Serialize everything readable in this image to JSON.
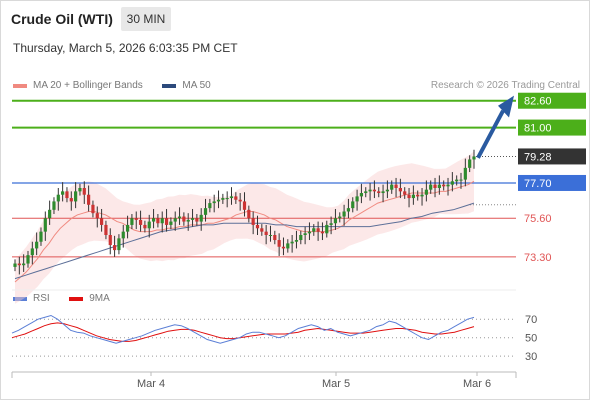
{
  "header": {
    "title": "Crude Oil (WTI)",
    "timeframe": "30 MIN",
    "datetime": "Thursday, March 5, 2026 6:03:35 PM CET",
    "copyright": "Research © 2026 Trading Central"
  },
  "legend": [
    {
      "label": "MA 20 + Bollinger Bands",
      "color": "#f08a80"
    },
    {
      "label": "MA 50",
      "color": "#2c4a7c"
    }
  ],
  "rsi_legend": [
    {
      "label": "RSI",
      "color": "#5b7fd6"
    },
    {
      "label": "9MA",
      "color": "#e01010"
    }
  ],
  "colors": {
    "resistance": "#4caf1a",
    "support": "#e05555",
    "pivot": "#3b6fd8",
    "price_tag": "#333333",
    "arrow": "#2a5aa0",
    "candle_up": "#2e8b2e",
    "candle_down": "#cc3333"
  },
  "chart_data": {
    "type": "candlestick",
    "y_range": [
      71.8,
      83.0
    ],
    "levels": [
      {
        "label": "82.60",
        "value": 82.6,
        "kind": "resistance"
      },
      {
        "label": "81.00",
        "value": 81.0,
        "kind": "resistance"
      },
      {
        "label": "79.28",
        "value": 79.28,
        "kind": "last_price"
      },
      {
        "label": "77.70",
        "value": 77.7,
        "kind": "pivot"
      },
      {
        "label": "75.60",
        "value": 75.6,
        "kind": "support"
      },
      {
        "label": "73.30",
        "value": 73.3,
        "kind": "support"
      }
    ],
    "x_tick_labels": [
      "Mar 4",
      "Mar 5",
      "Mar 6"
    ],
    "close": [
      72.9,
      72.8,
      72.9,
      73.4,
      73.8,
      74.2,
      74.8,
      75.6,
      76.1,
      76.6,
      77.0,
      77.2,
      76.8,
      76.6,
      77.2,
      77.4,
      77.0,
      76.4,
      75.9,
      75.6,
      75.2,
      74.6,
      74.0,
      73.7,
      74.4,
      74.8,
      75.2,
      75.6,
      75.5,
      75.2,
      75.0,
      75.4,
      75.6,
      75.3,
      75.6,
      75.2,
      75.4,
      75.6,
      75.7,
      75.4,
      75.5,
      75.6,
      75.4,
      75.8,
      76.2,
      76.5,
      76.6,
      76.7,
      76.8,
      76.8,
      76.9,
      76.7,
      76.6,
      76.1,
      75.6,
      75.2,
      75.0,
      74.8,
      74.6,
      74.6,
      74.3,
      73.9,
      73.8,
      74.1,
      74.2,
      74.3,
      74.6,
      74.7,
      74.8,
      75.0,
      74.8,
      74.7,
      75.2,
      75.3,
      75.6,
      75.7,
      76.0,
      76.2,
      76.6,
      76.9,
      77.1,
      77.2,
      77.3,
      77.2,
      77.1,
      77.2,
      77.3,
      77.6,
      77.4,
      77.2,
      77.0,
      76.8,
      77.0,
      76.9,
      77.0,
      77.3,
      77.6,
      77.4,
      77.6,
      77.5,
      77.6,
      77.8,
      77.9,
      77.9,
      78.6,
      79.1,
      79.28
    ],
    "ma20": [
      71.8,
      72.1,
      72.4,
      72.8,
      73.2,
      73.7,
      74.1,
      74.6,
      75.0,
      75.3,
      75.6,
      75.8,
      75.9,
      76.0,
      76.0,
      75.9,
      75.8,
      75.6,
      75.4,
      75.3,
      75.1,
      74.9,
      74.8,
      74.8,
      74.8,
      74.9,
      74.9,
      75.0,
      75.0,
      75.1,
      75.1,
      75.2,
      75.2,
      75.2,
      75.3,
      75.3,
      75.4,
      75.5,
      75.6,
      75.8,
      75.9,
      76.0,
      76.0,
      75.9,
      75.8,
      75.6,
      75.5,
      75.3,
      75.1,
      75.0,
      74.9,
      74.8,
      74.8,
      74.8,
      74.8,
      74.8,
      74.9,
      75.0,
      75.2,
      75.5,
      75.7,
      75.9,
      76.1,
      76.3,
      76.5,
      76.6,
      76.7,
      76.8,
      76.9,
      77.0,
      77.1,
      77.1,
      77.1,
      77.1,
      77.1,
      77.2,
      77.2,
      77.3,
      77.4,
      77.5,
      77.6,
      77.8
    ],
    "ma50": [
      72.0,
      72.2,
      72.4,
      72.6,
      72.8,
      73.0,
      73.2,
      73.4,
      73.6,
      73.8,
      74.0,
      74.2,
      74.4,
      74.6,
      74.8,
      74.9,
      75.0,
      75.1,
      75.2,
      75.2,
      75.3,
      75.3,
      75.3,
      75.3,
      75.3,
      75.2,
      75.2,
      75.1,
      75.1,
      75.1,
      75.1,
      75.1,
      75.1,
      75.1,
      75.1,
      75.2,
      75.3,
      75.4,
      75.6,
      75.7,
      75.9,
      76.0,
      76.1,
      76.3,
      76.5
    ],
    "rsi": {
      "y_range": [
        15,
        80
      ],
      "levels": [
        70,
        50,
        30
      ],
      "rsi": [
        55,
        58,
        62,
        66,
        70,
        72,
        74,
        70,
        64,
        58,
        56,
        55,
        52,
        50,
        48,
        46,
        44,
        46,
        48,
        50,
        52,
        55,
        58,
        60,
        62,
        64,
        63,
        60,
        56,
        52,
        48,
        46,
        44,
        46,
        48,
        50,
        54,
        56,
        56,
        54,
        52,
        50,
        52,
        56,
        60,
        62,
        64,
        62,
        58,
        60,
        56,
        54,
        52,
        54,
        56,
        58,
        62,
        64,
        68,
        66,
        62,
        58,
        54,
        50,
        48,
        52,
        56,
        58,
        62,
        66,
        70,
        72
      ],
      "ma9": [
        50,
        52,
        54,
        57,
        60,
        63,
        65,
        66,
        65,
        63,
        61,
        58,
        55,
        52,
        50,
        48,
        47,
        46,
        46,
        47,
        49,
        51,
        53,
        55,
        57,
        58,
        59,
        59,
        58,
        56,
        54,
        52,
        50,
        49,
        49,
        50,
        51,
        52,
        53,
        54,
        54,
        54,
        54,
        55,
        56,
        58,
        59,
        60,
        59,
        58,
        57,
        56,
        55,
        55,
        55,
        56,
        57,
        58,
        59,
        60,
        60,
        59,
        58,
        56,
        55,
        54,
        54,
        55,
        56,
        58,
        60,
        62
      ]
    }
  }
}
